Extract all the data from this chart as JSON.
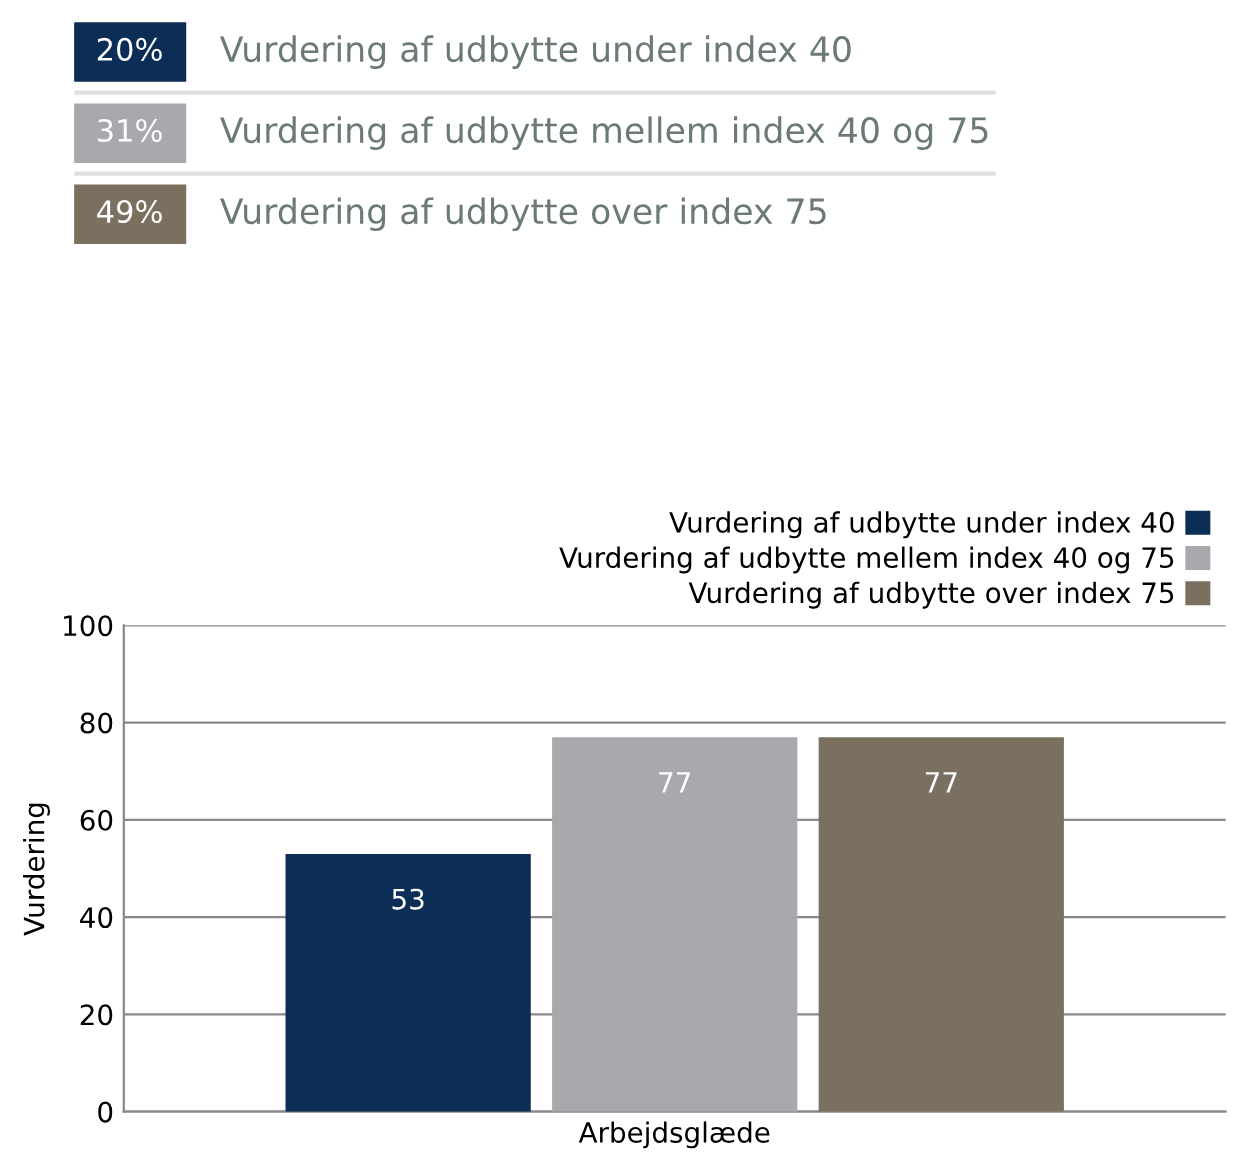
{
  "chart_data": [
    {
      "type": "other",
      "categories": [
        "Vurdering af udbytte under index 40",
        "Vurdering af udbytte mellem index 40 og 75",
        "Vurdering af udbytte over index 75"
      ],
      "values": [
        20,
        31,
        49
      ],
      "value_labels": [
        "20%",
        "31%",
        "49%"
      ],
      "colors": [
        "#0c2d55",
        "#a7a9ad",
        "#7b6f60"
      ]
    },
    {
      "type": "bar",
      "categories": [
        "Arbejdsglæde"
      ],
      "ylabel": "Vurdering",
      "series": [
        {
          "name": "Vurdering af udbytte under index 40",
          "color": "#0c2d55",
          "values": [
            53
          ]
        },
        {
          "name": "Vurdering af udbytte mellem index 40 og 75",
          "color": "#a7a9ad",
          "values": [
            77
          ]
        },
        {
          "name": "Vurdering af udbytte over index 75",
          "color": "#7b6f60",
          "values": [
            77
          ]
        }
      ],
      "ylim": [
        0,
        100
      ],
      "yticks": [
        0,
        20,
        40,
        60,
        80,
        100
      ],
      "grid": "y",
      "legend": "top right",
      "data_labels": true
    }
  ]
}
